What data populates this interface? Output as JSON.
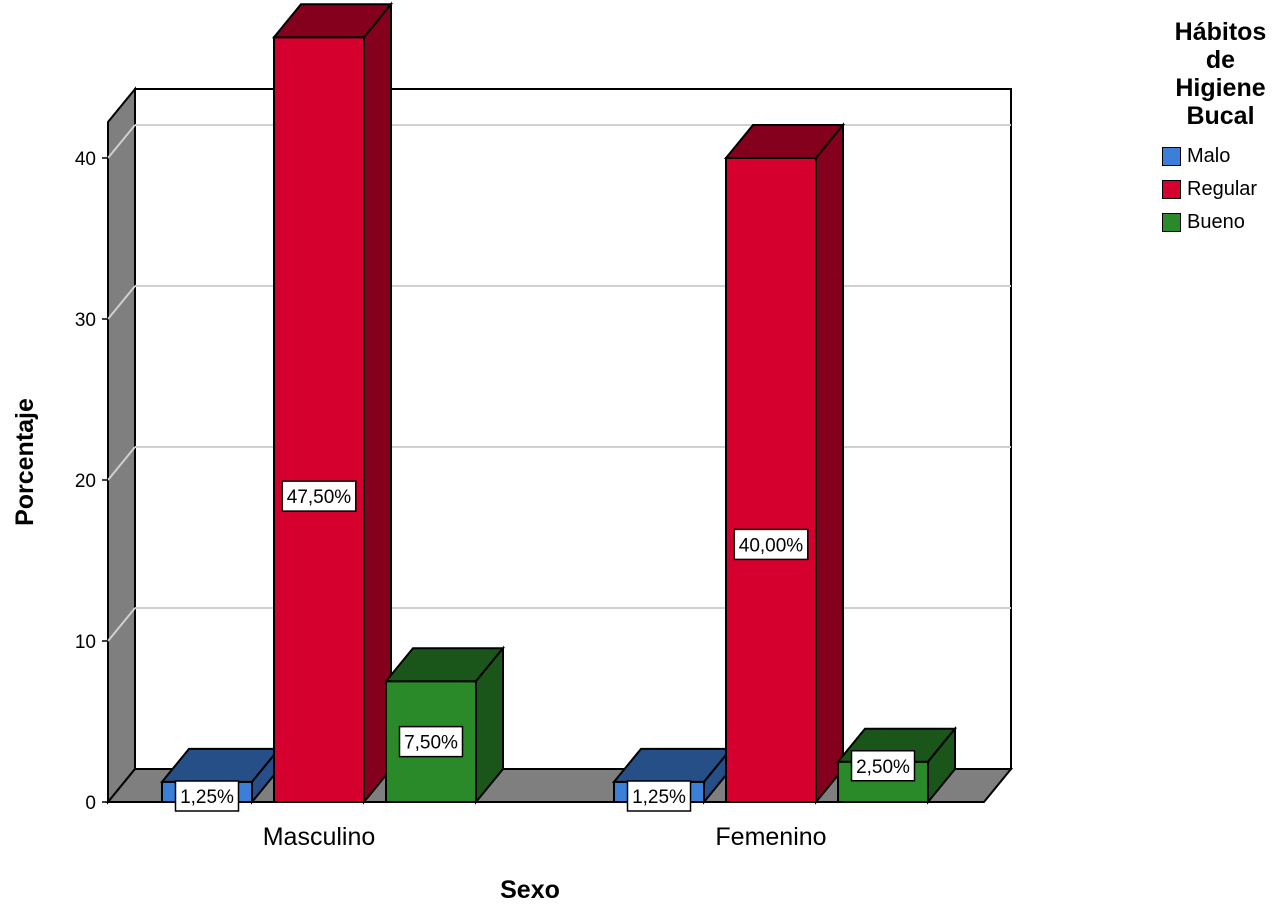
{
  "chart_data": {
    "type": "bar",
    "title": "",
    "xlabel": "Sexo",
    "ylabel": "Porcentaje",
    "ylim": [
      0,
      44
    ],
    "yticks": [
      0,
      10,
      20,
      30,
      40
    ],
    "categories": [
      "Masculino",
      "Femenino"
    ],
    "legend": {
      "title": "Hábitos de Higiene Bucal",
      "position": "top-right"
    },
    "grid": true,
    "series": [
      {
        "name": "Malo",
        "color": "#3b7fd8",
        "values": [
          1.25,
          1.25
        ],
        "labels": [
          "1,25%",
          "1,25%"
        ]
      },
      {
        "name": "Regular",
        "color": "#d6002f",
        "values": [
          47.5,
          40.0
        ],
        "labels": [
          "47,50%",
          "40,00%"
        ]
      },
      {
        "name": "Bueno",
        "color": "#2a8a2a",
        "values": [
          7.5,
          2.5
        ],
        "labels": [
          "7,50%",
          "2,50%"
        ]
      }
    ]
  }
}
